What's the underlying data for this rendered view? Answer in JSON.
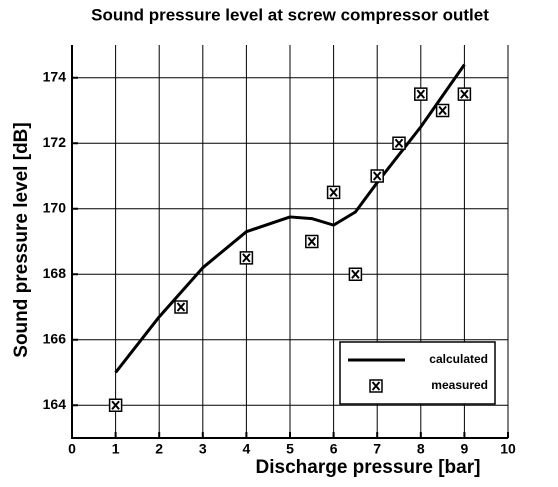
{
  "chart_data": {
    "type": "line",
    "title": "Sound pressure level at screw compressor outlet",
    "x_label": "Discharge pressure [bar]",
    "y_label": "Sound pressure level [dB]",
    "xlim": [
      0,
      10
    ],
    "xticks": [
      0,
      1,
      2,
      3,
      4,
      5,
      6,
      7,
      8,
      9,
      10
    ],
    "ylim": [
      163,
      175
    ],
    "yticks": [
      164,
      166,
      168,
      170,
      172,
      174
    ],
    "grid": true,
    "legend": "lower right",
    "series": [
      {
        "name": "calculated",
        "color": "#000000",
        "style": "line",
        "x": [
          1,
          2,
          3,
          4,
          5,
          5.5,
          6,
          6.5,
          7,
          8,
          9
        ],
        "values": [
          165.0,
          166.7,
          168.2,
          169.3,
          169.75,
          169.7,
          169.5,
          169.9,
          170.8,
          172.5,
          174.4
        ]
      },
      {
        "name": "measured",
        "color": "#000000",
        "style": "marker",
        "x": [
          1,
          2.5,
          4,
          5.5,
          6,
          6.5,
          7,
          7.5,
          8,
          8.5,
          9
        ],
        "values": [
          164,
          167,
          168.5,
          169,
          170.5,
          168,
          171,
          172,
          173.5,
          173,
          173.5
        ]
      }
    ]
  }
}
